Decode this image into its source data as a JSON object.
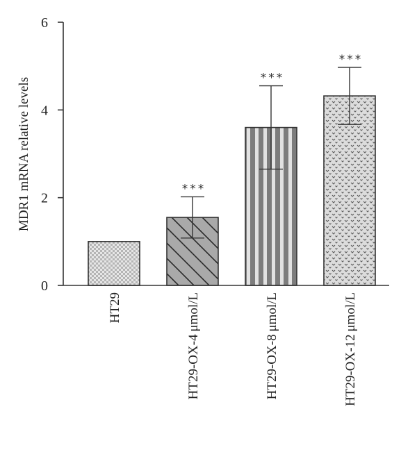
{
  "chart_data": {
    "type": "bar",
    "categories": [
      "HT29",
      "HT29-OX-4 μmol/L",
      "HT29-OX-8 μmol/L",
      "HT29-OX-12 μmol/L"
    ],
    "values": [
      1.0,
      1.55,
      3.6,
      4.32
    ],
    "errors": [
      0,
      0.47,
      0.95,
      0.65
    ],
    "significance": [
      "",
      "***",
      "***",
      "***"
    ],
    "patterns": [
      "checker",
      "diagonal",
      "vertical-stripes",
      "dots"
    ],
    "bar_colors": [
      "#d0d0d0",
      "#a8a8a8",
      "#888888",
      "#d8d8d8"
    ],
    "ylabel": "MDR1 mRNA relative levels",
    "xlabel": "",
    "title": "",
    "ylim": [
      0,
      6
    ],
    "yticks": [
      0,
      2,
      4,
      6
    ],
    "grid": false,
    "legend": "none"
  }
}
